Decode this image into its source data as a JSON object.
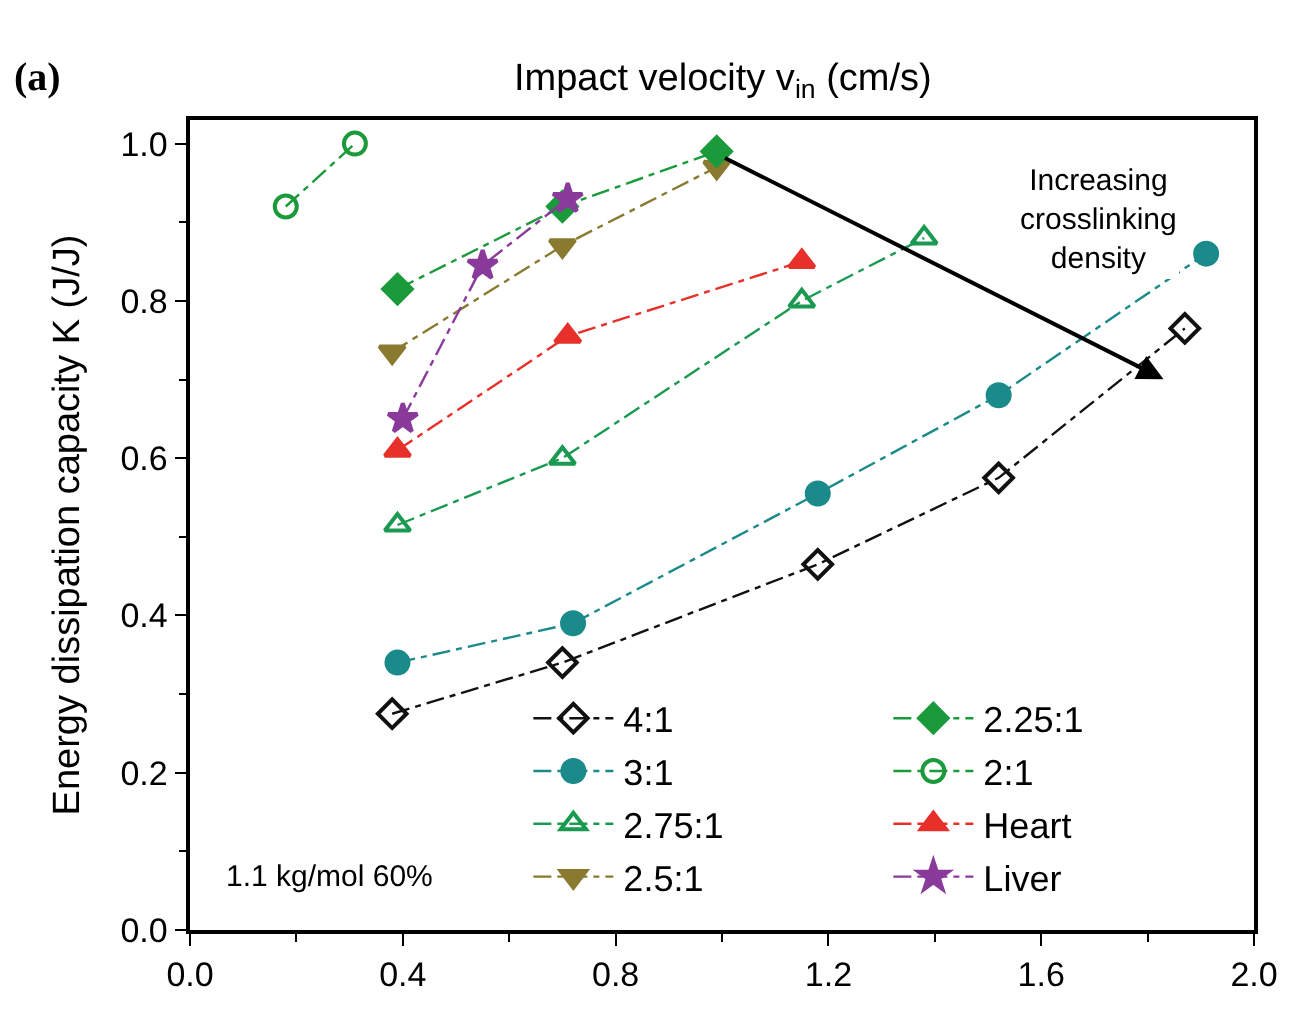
{
  "chart_data": {
    "type": "line",
    "xlabel": "Impact velocity v$_{in}$ (cm/s)",
    "ylabel": "Energy dissipation capacity K (J/J)",
    "xlim": [
      0,
      2.0
    ],
    "xticks": [
      {
        "value": 0,
        "label": "0.0"
      },
      0.4,
      0.8,
      1.2,
      1.6,
      {
        "value": 2,
        "label": "2.0"
      }
    ],
    "ylim": [
      0,
      1.03
    ],
    "yticks": [
      {
        "value": 0,
        "label": "0.0"
      },
      0.2,
      0.4,
      0.6,
      0.8,
      {
        "value": 1,
        "label": "1.0"
      }
    ],
    "legend": "bottom right",
    "line_style": "dashed",
    "annotations": [
      "(a)",
      "Increasing crosslinking density",
      "1.1 kg/mol 60%"
    ],
    "series": [
      {
        "name": "4:1",
        "color": "#111111",
        "marker": "diamond-open",
        "x": [
          0.38,
          0.7,
          1.18,
          1.52,
          1.87
        ],
        "values": [
          0.275,
          0.34,
          0.465,
          0.575,
          0.765
        ]
      },
      {
        "name": "3:1",
        "color": "#1a8a8a",
        "marker": "circle",
        "x": [
          0.39,
          0.72,
          1.18,
          1.52,
          1.91
        ],
        "values": [
          0.34,
          0.39,
          0.555,
          0.68,
          0.86
        ]
      },
      {
        "name": "2.75:1",
        "color": "#1a9a50",
        "marker": "triangle-up-open",
        "x": [
          0.39,
          0.7,
          1.15,
          1.38
        ],
        "values": [
          0.515,
          0.6,
          0.8,
          0.88
        ]
      },
      {
        "name": "2.5:1",
        "color": "#8a7a30",
        "marker": "triangle-down",
        "x": [
          0.38,
          0.7,
          0.99
        ],
        "values": [
          0.735,
          0.87,
          0.97
        ]
      },
      {
        "name": "2.25:1",
        "color": "#1a9a3a",
        "marker": "diamond",
        "x": [
          0.39,
          0.7,
          0.99
        ],
        "values": [
          0.815,
          0.92,
          0.99
        ]
      },
      {
        "name": "2:1",
        "color": "#1a9a3a",
        "marker": "circle-open",
        "x": [
          0.18,
          0.31
        ],
        "values": [
          0.92,
          1.0
        ]
      },
      {
        "name": "Heart",
        "color": "#e8302a",
        "marker": "triangle-up",
        "x": [
          0.39,
          0.71,
          1.15
        ],
        "values": [
          0.61,
          0.755,
          0.85
        ]
      },
      {
        "name": "Liver",
        "color": "#8a3a9a",
        "marker": "star",
        "x": [
          0.4,
          0.55,
          0.71
        ],
        "values": [
          0.65,
          0.845,
          0.93
        ]
      }
    ]
  }
}
